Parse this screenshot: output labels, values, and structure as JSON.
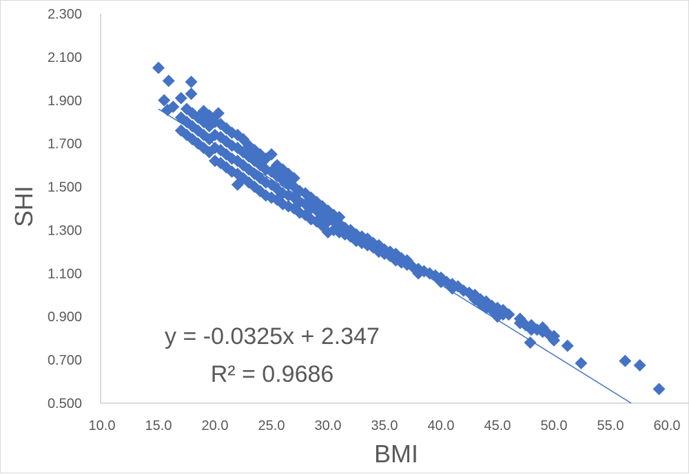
{
  "chart_data": {
    "type": "scatter",
    "title": "",
    "xlabel": "BMI",
    "ylabel": "SHI",
    "xlim": [
      10,
      60
    ],
    "ylim": [
      0.5,
      2.3
    ],
    "x_ticks": [
      "10.0",
      "15.0",
      "20.0",
      "25.0",
      "30.0",
      "35.0",
      "40.0",
      "45.0",
      "50.0",
      "55.0",
      "60.0"
    ],
    "y_ticks": [
      "0.500",
      "0.700",
      "0.900",
      "1.100",
      "1.300",
      "1.500",
      "1.700",
      "1.900",
      "2.100",
      "2.300"
    ],
    "grid": false,
    "legend": "none",
    "marker": "diamond",
    "color": "#4472c4",
    "axis_color": "#d9d9d9",
    "text_color": "#595959",
    "trendline": {
      "type": "linear",
      "slope": -0.0325,
      "intercept": 2.347,
      "equation_label": "y = -0.0325x + 2.347",
      "r2_label": "R² = 0.9686"
    },
    "points": [
      [
        15.0,
        2.05
      ],
      [
        15.9,
        1.99
      ],
      [
        17.9,
        1.985
      ],
      [
        15.5,
        1.9
      ],
      [
        17.0,
        1.91
      ],
      [
        17.9,
        1.93
      ],
      [
        15.8,
        1.855
      ],
      [
        16.3,
        1.87
      ],
      [
        20.3,
        1.84
      ],
      [
        17,
        1.76
      ],
      [
        17,
        1.82
      ],
      [
        17.5,
        1.74
      ],
      [
        17.5,
        1.8
      ],
      [
        17.5,
        1.86
      ],
      [
        18,
        1.72
      ],
      [
        18,
        1.78
      ],
      [
        18,
        1.84
      ],
      [
        18.5,
        1.7
      ],
      [
        18.5,
        1.76
      ],
      [
        18.5,
        1.82
      ],
      [
        19,
        1.68
      ],
      [
        19,
        1.74
      ],
      [
        19,
        1.8
      ],
      [
        19,
        1.85
      ],
      [
        19.5,
        1.66
      ],
      [
        19.5,
        1.72
      ],
      [
        19.5,
        1.78
      ],
      [
        19.5,
        1.83
      ],
      [
        20,
        1.62
      ],
      [
        20,
        1.68
      ],
      [
        20,
        1.74
      ],
      [
        20,
        1.8
      ],
      [
        20.5,
        1.61
      ],
      [
        20.5,
        1.67
      ],
      [
        20.5,
        1.73
      ],
      [
        20.5,
        1.79
      ],
      [
        21,
        1.59
      ],
      [
        21,
        1.65
      ],
      [
        21,
        1.71
      ],
      [
        21,
        1.77
      ],
      [
        21.5,
        1.57
      ],
      [
        21.5,
        1.63
      ],
      [
        21.5,
        1.69
      ],
      [
        21.5,
        1.75
      ],
      [
        22,
        1.51
      ],
      [
        22,
        1.56
      ],
      [
        22,
        1.62
      ],
      [
        22,
        1.68
      ],
      [
        22,
        1.74
      ],
      [
        22.5,
        1.54
      ],
      [
        22.5,
        1.6
      ],
      [
        22.5,
        1.66
      ],
      [
        22.5,
        1.72
      ],
      [
        23,
        1.52
      ],
      [
        23,
        1.58
      ],
      [
        23,
        1.64
      ],
      [
        23,
        1.69
      ],
      [
        23.5,
        1.5
      ],
      [
        23.5,
        1.56
      ],
      [
        23.5,
        1.62
      ],
      [
        23.5,
        1.67
      ],
      [
        24,
        1.48
      ],
      [
        24,
        1.54
      ],
      [
        24,
        1.6
      ],
      [
        24,
        1.65
      ],
      [
        24.5,
        1.46
      ],
      [
        24.5,
        1.52
      ],
      [
        24.5,
        1.58
      ],
      [
        24.5,
        1.63
      ],
      [
        25,
        1.45
      ],
      [
        25,
        1.51
      ],
      [
        25,
        1.57
      ],
      [
        25,
        1.65
      ],
      [
        25.5,
        1.44
      ],
      [
        25.5,
        1.49
      ],
      [
        25.5,
        1.55
      ],
      [
        25.5,
        1.6
      ],
      [
        26,
        1.42
      ],
      [
        26,
        1.47
      ],
      [
        26,
        1.53
      ],
      [
        26,
        1.58
      ],
      [
        26.5,
        1.41
      ],
      [
        26.5,
        1.46
      ],
      [
        26.5,
        1.51
      ],
      [
        26.5,
        1.56
      ],
      [
        27,
        1.4
      ],
      [
        27,
        1.45
      ],
      [
        27,
        1.5
      ],
      [
        27,
        1.54
      ],
      [
        27.5,
        1.38
      ],
      [
        27.5,
        1.43
      ],
      [
        27.5,
        1.48
      ],
      [
        28,
        1.37
      ],
      [
        28,
        1.42
      ],
      [
        28,
        1.47
      ],
      [
        28.5,
        1.35
      ],
      [
        28.5,
        1.4
      ],
      [
        28.5,
        1.45
      ],
      [
        29,
        1.34
      ],
      [
        29,
        1.39
      ],
      [
        29,
        1.43
      ],
      [
        29.5,
        1.32
      ],
      [
        29.5,
        1.37
      ],
      [
        29.5,
        1.41
      ],
      [
        30,
        1.29
      ],
      [
        30,
        1.34
      ],
      [
        30,
        1.39
      ],
      [
        30.5,
        1.3
      ],
      [
        30.5,
        1.34
      ],
      [
        30.5,
        1.37
      ],
      [
        31,
        1.29
      ],
      [
        31,
        1.33
      ],
      [
        31,
        1.36
      ],
      [
        31.5,
        1.28
      ],
      [
        31.5,
        1.31
      ],
      [
        32,
        1.27
      ],
      [
        32,
        1.3
      ],
      [
        32.5,
        1.25
      ],
      [
        32.5,
        1.28
      ],
      [
        33,
        1.24
      ],
      [
        33,
        1.27
      ],
      [
        33.5,
        1.23
      ],
      [
        33.5,
        1.26
      ],
      [
        34,
        1.22
      ],
      [
        34,
        1.24
      ],
      [
        34.5,
        1.2
      ],
      [
        34.5,
        1.23
      ],
      [
        35,
        1.19
      ],
      [
        35,
        1.21
      ],
      [
        35.5,
        1.18
      ],
      [
        35.5,
        1.2
      ],
      [
        36,
        1.16
      ],
      [
        36,
        1.19
      ],
      [
        36.5,
        1.15
      ],
      [
        36.5,
        1.17
      ],
      [
        37,
        1.14
      ],
      [
        37,
        1.16
      ],
      [
        37.5,
        1.13
      ],
      [
        38,
        1.12
      ],
      [
        38,
        1.1
      ],
      [
        38.5,
        1.11
      ],
      [
        39,
        1.1
      ],
      [
        39.5,
        1.09
      ],
      [
        40,
        1.08
      ],
      [
        40,
        1.06
      ],
      [
        40.5,
        1.06
      ],
      [
        41,
        1.05
      ],
      [
        41,
        1.03
      ],
      [
        41.5,
        1.04
      ],
      [
        42,
        1.02
      ],
      [
        42.5,
        1.01
      ],
      [
        43,
        1.0
      ],
      [
        43,
        0.98
      ],
      [
        43.5,
        0.98
      ],
      [
        43.5,
        0.96
      ],
      [
        44,
        0.97
      ],
      [
        44,
        0.94
      ],
      [
        44.5,
        0.95
      ],
      [
        44.5,
        0.93
      ],
      [
        45,
        0.94
      ],
      [
        45,
        0.9
      ],
      [
        45.5,
        0.93
      ],
      [
        45.5,
        0.91
      ],
      [
        46,
        0.91
      ],
      [
        47,
        0.89
      ],
      [
        47,
        0.87
      ],
      [
        47.5,
        0.86
      ],
      [
        48,
        0.86
      ],
      [
        48,
        0.84
      ],
      [
        48.5,
        0.84
      ],
      [
        49,
        0.85
      ],
      [
        49,
        0.83
      ],
      [
        49.5,
        0.82
      ],
      [
        50,
        0.81
      ],
      [
        50,
        0.79
      ],
      [
        47.9,
        0.78
      ],
      [
        51.2,
        0.765
      ],
      [
        52.4,
        0.685
      ],
      [
        56.3,
        0.695
      ],
      [
        57.6,
        0.675
      ],
      [
        59.3,
        0.565
      ]
    ]
  }
}
